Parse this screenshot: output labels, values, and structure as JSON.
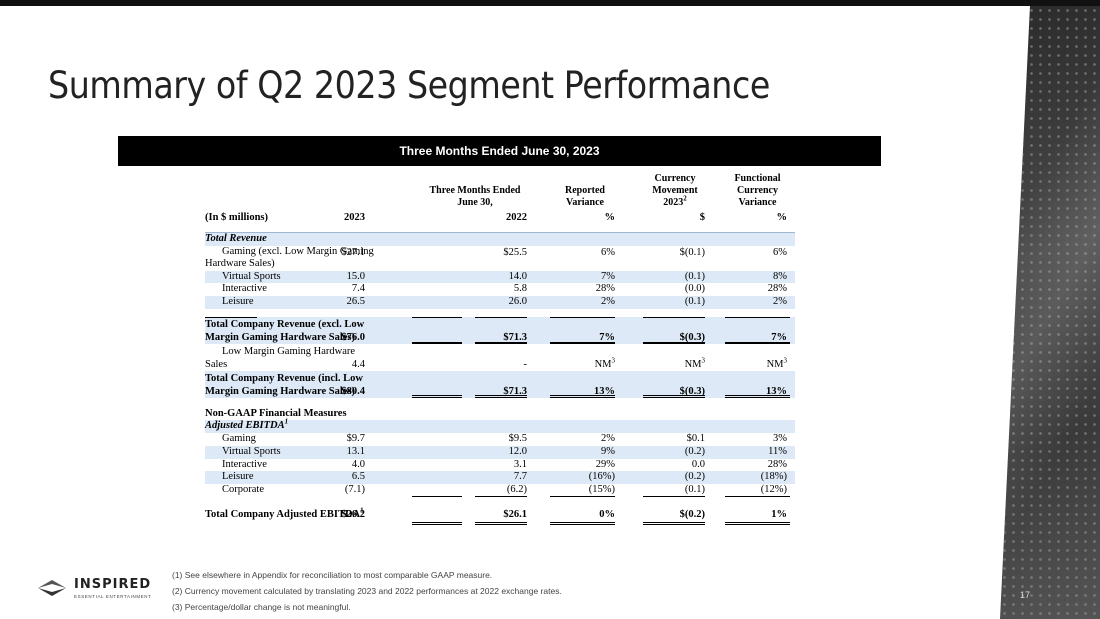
{
  "title": "Summary of Q2 2023 Segment Performance",
  "banner": "Three Months Ended June 30, 2023",
  "headers": {
    "period": "Three Months Ended\nJune 30,",
    "reported": "Reported\nVariance",
    "currency_a": "Currency\nMovement",
    "currency_b": "2023",
    "currency_sup": "2",
    "functional": "Functional\nCurrency\nVariance",
    "units": "(In $ millions)",
    "y2023": "2023",
    "y2022": "2022",
    "pct": "%",
    "dollar": "$",
    "pct2": "%"
  },
  "revenue": {
    "section": "Total Revenue",
    "gaming": {
      "label1": "Gaming (excl. Low Margin Gaming",
      "label2": "Hardware Sales)",
      "v2023": "$27.1",
      "v2022": "$25.5",
      "rep": "6%",
      "cur": "$(0.1)",
      "fun": "6%"
    },
    "rows": [
      {
        "label": "Virtual Sports",
        "v2023": "15.0",
        "v2022": "14.0",
        "rep": "7%",
        "cur": "(0.1)",
        "fun": "8%"
      },
      {
        "label": "Interactive",
        "v2023": "7.4",
        "v2022": "5.8",
        "rep": "28%",
        "cur": "(0.0)",
        "fun": "28%"
      },
      {
        "label": "Leisure",
        "v2023": "26.5",
        "v2022": "26.0",
        "rep": "2%",
        "cur": "(0.1)",
        "fun": "2%"
      }
    ],
    "total_excl": {
      "label1": "Total Company Revenue (excl. Low",
      "label2": "Margin Gaming Hardware Sales)",
      "v2023": "$76.0",
      "v2022": "$71.3",
      "rep": "7%",
      "cur": "$(0.3)",
      "fun": "7%"
    },
    "low_margin": {
      "label1": "Low Margin Gaming Hardware",
      "label2": "Sales",
      "v2023": "4.4",
      "v2022": "-",
      "rep": "NM",
      "cur": "NM",
      "fun": "NM",
      "sup": "3"
    },
    "total_incl": {
      "label1": "Total Company Revenue (incl. Low",
      "label2": "Margin Gaming Hardware Sales)",
      "v2023": "$80.4",
      "v2022": "$71.3",
      "rep": "13%",
      "cur": "$(0.3)",
      "fun": "13%"
    }
  },
  "ebitda": {
    "section": "Non-GAAP Financial Measures",
    "sub": "Adjusted EBITDA",
    "sub_sup": "1",
    "rows": [
      {
        "label": "Gaming",
        "v2023": "$9.7",
        "v2022": "$9.5",
        "rep": "2%",
        "cur": "$0.1",
        "fun": "3%"
      },
      {
        "label": "Virtual Sports",
        "v2023": "13.1",
        "v2022": "12.0",
        "rep": "9%",
        "cur": "(0.2)",
        "fun": "11%"
      },
      {
        "label": "Interactive",
        "v2023": "4.0",
        "v2022": "3.1",
        "rep": "29%",
        "cur": "0.0",
        "fun": "28%"
      },
      {
        "label": "Leisure",
        "v2023": "6.5",
        "v2022": "7.7",
        "rep": "(16%)",
        "cur": "(0.2)",
        "fun": "(18%)"
      },
      {
        "label": "Corporate",
        "v2023": "(7.1)",
        "v2022": "(6.2)",
        "rep": "(15%)",
        "cur": "(0.1)",
        "fun": "(12%)"
      }
    ],
    "total": {
      "label": "Total Company Adjusted EBITDA",
      "sup": "1",
      "v2023": "$26.2",
      "v2022": "$26.1",
      "rep": "0%",
      "cur": "$(0.2)",
      "fun": "1%"
    }
  },
  "footnotes": [
    "(1) See elsewhere in Appendix for reconciliation to most comparable GAAP measure.",
    "(2) Currency movement calculated by translating 2023 and 2022 performances at 2022 exchange rates.",
    "(3) Percentage/dollar change is not meaningful."
  ],
  "logo": {
    "name": "INSPIRED",
    "tagline": "ESSENTIAL ENTERTAINMENT"
  },
  "page_number": "17"
}
